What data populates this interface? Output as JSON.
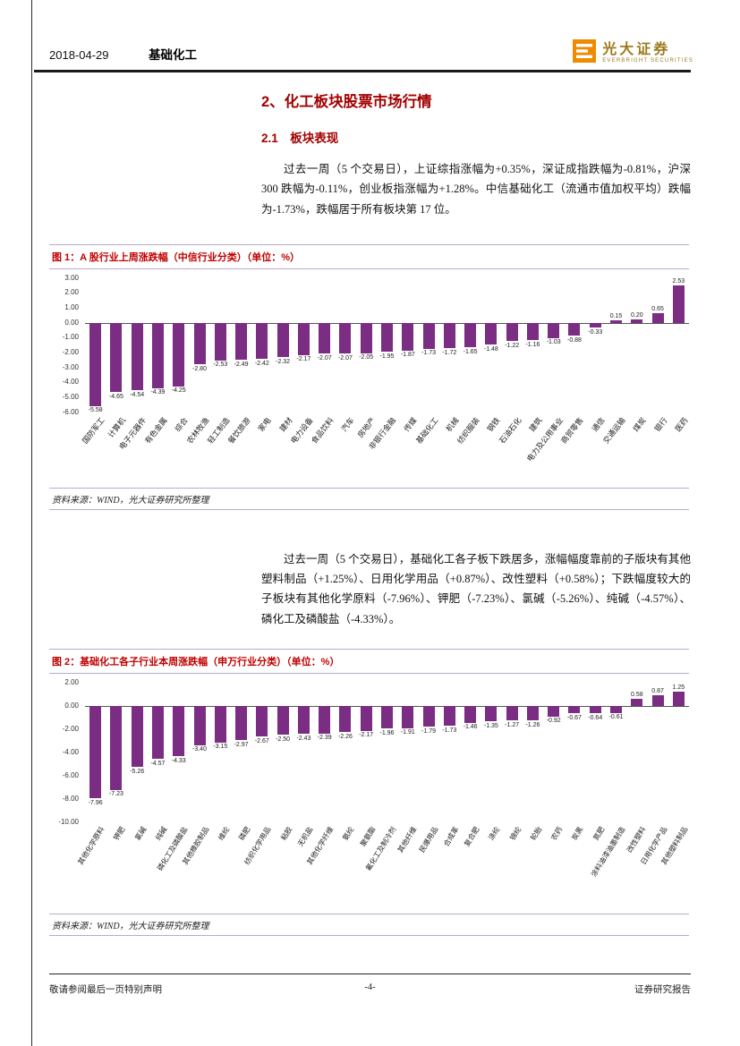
{
  "header": {
    "date": "2018-04-29",
    "category": "基础化工",
    "brand_name": "光大证券",
    "brand_subtitle": "EVERBRIGHT SECURITIES"
  },
  "content": {
    "section_title": "2、化工板块股票市场行情",
    "subsection_title": "2.1　板块表现",
    "paragraph1": "过去一周（5 个交易日），上证综指涨幅为+0.35%，深证成指跌幅为-0.81%，沪深 300 跌幅为-0.11%，创业板指涨幅为+1.28%。中信基础化工（流通市值加权平均）跌幅为-1.73%，跌幅居于所有板块第 17 位。",
    "paragraph2": "过去一周（5 个交易日），基础化工各子板下跌居多，涨幅幅度靠前的子版块有其他塑料制品（+1.25%）、日用化学用品（+0.87%）、改性塑料（+0.58%）；下跌幅度较大的子板块有其他化学原料（-7.96%）、钾肥（-7.23%）、氯碱（-5.26%）、纯碱（-4.57%）、磷化工及磷酸盐（-4.33%）。"
  },
  "figures": [
    {
      "caption": "图 1：A 股行业上周涨跌幅（中信行业分类）（单位：%）",
      "source": "资料来源：WIND，光大证券研究所整理"
    },
    {
      "caption": "图 2：基础化工各子行业本周涨跌幅（申万行业分类）（单位：%）",
      "source": "资料来源：WIND，光大证券研究所整理"
    }
  ],
  "footer": {
    "left": "敬请参阅最后一页特别声明",
    "page_number": "-4-",
    "right": "证券研究报告"
  },
  "colors": {
    "bar": "#7b2c83",
    "heading_red": "#a30000",
    "caption_red": "#c00000",
    "brand_orange": "#f08a00"
  },
  "chart_data": [
    {
      "type": "bar",
      "title": "A股行业上周涨跌幅（中信行业分类）",
      "unit": "%",
      "ylim": [
        -6,
        3
      ],
      "yticks": [
        3,
        2,
        1,
        0,
        -1,
        -2,
        -3,
        -4,
        -5,
        -6
      ],
      "grid": false,
      "legend": null,
      "bar_color": "#7b2c83",
      "categories": [
        "国防军工",
        "计算机",
        "电子元器件",
        "有色金属",
        "综合",
        "农林牧渔",
        "轻工制造",
        "餐饮旅游",
        "家电",
        "建材",
        "电力设备",
        "食品饮料",
        "汽车",
        "房地产",
        "非银行金融",
        "传媒",
        "基础化工",
        "机械",
        "纺织服装",
        "钢铁",
        "石油石化",
        "建筑",
        "电力及公用事业",
        "商贸零售",
        "通信",
        "交通运输",
        "煤炭",
        "银行",
        "医药"
      ],
      "values": [
        -5.58,
        -4.65,
        -4.54,
        -4.39,
        -4.25,
        -2.8,
        -2.53,
        -2.49,
        -2.42,
        -2.32,
        -2.17,
        -2.07,
        -2.07,
        -2.05,
        -1.95,
        -1.87,
        -1.73,
        -1.72,
        -1.65,
        -1.48,
        -1.22,
        -1.16,
        -1.03,
        -0.88,
        -0.33,
        0.15,
        0.2,
        0.65,
        2.53
      ]
    },
    {
      "type": "bar",
      "title": "基础化工各子行业本周涨跌幅（申万行业分类）",
      "unit": "%",
      "ylim": [
        -10,
        2
      ],
      "yticks": [
        2,
        0,
        -2,
        -4,
        -6,
        -8,
        -10
      ],
      "grid": false,
      "legend": null,
      "bar_color": "#7b2c83",
      "categories": [
        "其他化学原料",
        "钾肥",
        "氯碱",
        "纯碱",
        "磷化工及磷酸盐",
        "其他橡胶制品",
        "维纶",
        "磷肥",
        "纺织化学用品",
        "粘胶",
        "无机盐",
        "其他化学纤维",
        "氨纶",
        "聚氨酯",
        "氟化工及制冷剂",
        "其他纤维",
        "民爆用品",
        "合成革",
        "复合肥",
        "涤纶",
        "锦纶",
        "轮胎",
        "农药",
        "炭黑",
        "氮肥",
        "涂料油漆油墨制造",
        "改性塑料",
        "日用化学产品",
        "其他塑料制品"
      ],
      "values": [
        -7.96,
        -7.23,
        -5.26,
        -4.57,
        -4.33,
        -3.4,
        -3.15,
        -2.97,
        -2.67,
        -2.5,
        -2.43,
        -2.39,
        -2.26,
        -2.17,
        -1.96,
        -1.91,
        -1.79,
        -1.73,
        -1.46,
        -1.35,
        -1.27,
        -1.26,
        -0.92,
        -0.67,
        -0.64,
        -0.61,
        0.58,
        0.87,
        1.25
      ]
    }
  ]
}
